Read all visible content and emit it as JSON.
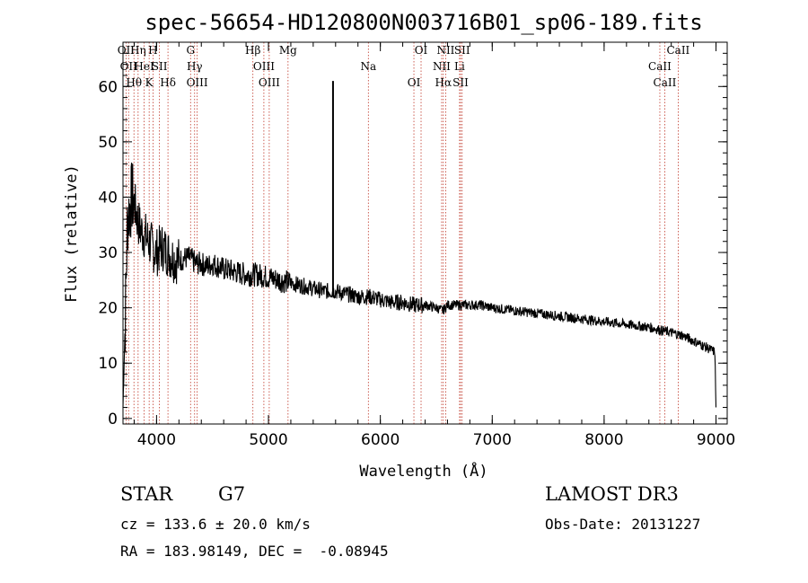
{
  "chart_data": {
    "type": "line",
    "title": "spec-56654-HD120800N003716B01_sp06-189.fits",
    "xlabel": "Wavelength (Å)",
    "ylabel": "Flux (relative)",
    "xlim": [
      3700,
      9100
    ],
    "ylim": [
      -1,
      68
    ],
    "xticks": [
      4000,
      5000,
      6000,
      7000,
      8000,
      9000
    ],
    "yticks": [
      0,
      10,
      20,
      30,
      40,
      50,
      60
    ],
    "series": [
      {
        "name": "flux",
        "x": [
          3700,
          3720,
          3740,
          3760,
          3780,
          3800,
          3830,
          3860,
          3900,
          3930,
          3960,
          4000,
          4050,
          4100,
          4150,
          4200,
          4250,
          4300,
          4350,
          4400,
          4450,
          4500,
          4600,
          4700,
          4800,
          4900,
          5000,
          5100,
          5200,
          5300,
          5400,
          5500,
          5600,
          5700,
          5800,
          5900,
          6000,
          6100,
          6200,
          6300,
          6400,
          6500,
          6560,
          6600,
          6700,
          6800,
          6900,
          7000,
          7200,
          7400,
          7600,
          7800,
          8000,
          8200,
          8400,
          8500,
          8600,
          8700,
          8800,
          8900,
          8990,
          9000
        ],
        "y": [
          2,
          18,
          36,
          38,
          40,
          39,
          36,
          34,
          33,
          32,
          31,
          30,
          31,
          30,
          29,
          28.5,
          29,
          29,
          28,
          28,
          27.5,
          28,
          27,
          26.5,
          26,
          26,
          25.5,
          25,
          24.5,
          24,
          23.5,
          23,
          23,
          22.5,
          22,
          22,
          21.5,
          21,
          21,
          20.5,
          20.5,
          20,
          19.5,
          20.5,
          20.5,
          20.5,
          20.5,
          20,
          19.5,
          19,
          18.5,
          18,
          17.5,
          17,
          16.5,
          16,
          15.5,
          15,
          14,
          13,
          12,
          2
        ]
      }
    ],
    "spikes": [
      {
        "x": 5577,
        "y": 61
      }
    ],
    "line_markers": [
      {
        "x": 3727,
        "label": "OII"
      },
      {
        "x": 3750,
        "label": "OII"
      },
      {
        "x": 3798,
        "label": "Hθ"
      },
      {
        "x": 3835,
        "label": "Hη"
      },
      {
        "x": 3889,
        "label": "HeI"
      },
      {
        "x": 3934,
        "label": "K"
      },
      {
        "x": 3968,
        "label": "H"
      },
      {
        "x": 4026,
        "label": "SII"
      },
      {
        "x": 4102,
        "label": "Hδ"
      },
      {
        "x": 4304,
        "label": "G"
      },
      {
        "x": 4340,
        "label": "Hγ"
      },
      {
        "x": 4363,
        "label": "OIII"
      },
      {
        "x": 4861,
        "label": "Hβ"
      },
      {
        "x": 4959,
        "label": "OIII"
      },
      {
        "x": 5007,
        "label": "OIII"
      },
      {
        "x": 5175,
        "label": "Mg"
      },
      {
        "x": 5893,
        "label": "Na"
      },
      {
        "x": 6300,
        "label": "OI"
      },
      {
        "x": 6364,
        "label": "OI"
      },
      {
        "x": 6548,
        "label": "NII"
      },
      {
        "x": 6563,
        "label": "Hα"
      },
      {
        "x": 6584,
        "label": "NII"
      },
      {
        "x": 6708,
        "label": "Li"
      },
      {
        "x": 6717,
        "label": "SII"
      },
      {
        "x": 6731,
        "label": "SII"
      },
      {
        "x": 8498,
        "label": "CaII"
      },
      {
        "x": 8542,
        "label": "CaII"
      },
      {
        "x": 8662,
        "label": "CaII"
      }
    ]
  },
  "info": {
    "class_label": "STAR",
    "subclass": "G7",
    "survey": "LAMOST DR3",
    "cz": "cz = 133.6 ± 20.0 km/s",
    "obs_date": "Obs-Date: 20131227",
    "coords": "RA = 183.98149, DEC =  -0.08945"
  },
  "colors": {
    "spectrum": "#000000",
    "marker": "#c0392b",
    "background": "#ffffff"
  }
}
